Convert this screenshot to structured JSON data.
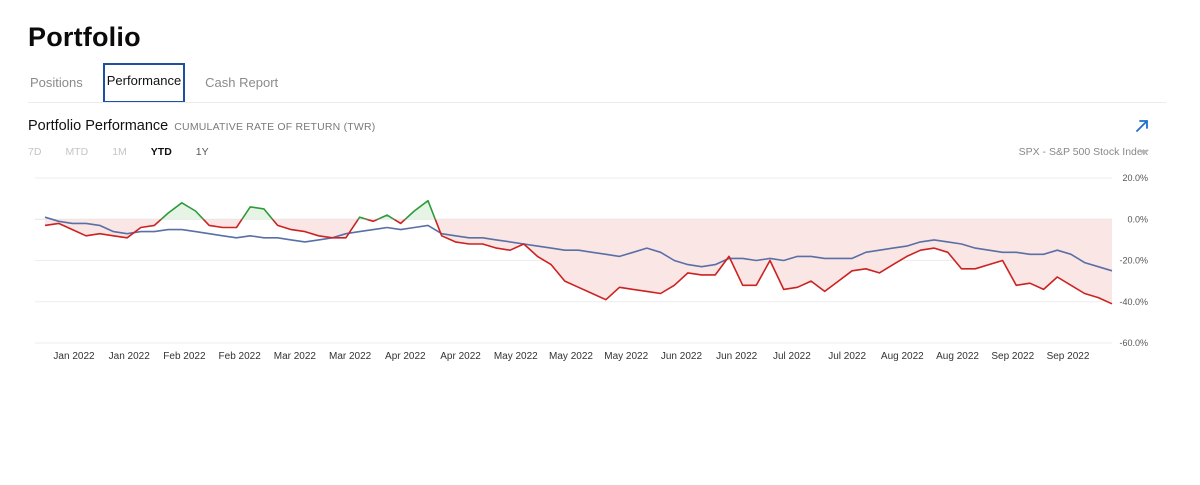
{
  "header": {
    "title": "Portfolio"
  },
  "tabs": [
    {
      "label": "Positions",
      "active": false
    },
    {
      "label": "Performance",
      "active": true
    },
    {
      "label": "Cash Report",
      "active": false
    }
  ],
  "section": {
    "title": "Portfolio Performance",
    "subtitle": "CUMULATIVE RATE OF RETURN (TWR)",
    "expand_icon": "arrow-up-right-icon"
  },
  "ranges": [
    {
      "label": "7D",
      "state": "disabled"
    },
    {
      "label": "MTD",
      "state": "disabled"
    },
    {
      "label": "1M",
      "state": "disabled"
    },
    {
      "label": "YTD",
      "state": "active"
    },
    {
      "label": "1Y",
      "state": "available"
    }
  ],
  "benchmark": {
    "label": "SPX - S&P 500 Stock Index",
    "icon": "caret-down-icon"
  },
  "colors": {
    "portfolio_gain": "#2e9a3e",
    "portfolio_loss": "#cc2222",
    "loss_fill": "#f9e6e5",
    "gain_fill": "#e6f4e6",
    "benchmark_line": "#5a6fa6",
    "tab_active_border": "#1f4fa0",
    "accent_icon": "#1f6fd1"
  },
  "chart_data": {
    "type": "line",
    "title": "Portfolio Performance",
    "subtitle": "CUMULATIVE RATE OF RETURN (TWR)",
    "x_tick_labels": [
      "Jan 2022",
      "Jan 2022",
      "Feb 2022",
      "Feb 2022",
      "Mar 2022",
      "Mar 2022",
      "Apr 2022",
      "Apr 2022",
      "May 2022",
      "May 2022",
      "May 2022",
      "Jun 2022",
      "Jun 2022",
      "Jul 2022",
      "Jul 2022",
      "Aug 2022",
      "Aug 2022",
      "Sep 2022",
      "Sep 2022"
    ],
    "y_ticks": [
      20,
      0,
      -20,
      -40,
      -60
    ],
    "y_tick_labels": [
      "20.0%",
      "0.0%",
      "-20.0%",
      "-40.0%",
      "-60.0%"
    ],
    "ylim": [
      -60,
      20
    ],
    "xlim": [
      0,
      39
    ],
    "series": [
      {
        "name": "Portfolio",
        "x": [
          0,
          0.5,
          1,
          1.5,
          2,
          2.5,
          3,
          3.5,
          4,
          4.5,
          5,
          5.5,
          6,
          6.5,
          7,
          7.5,
          8,
          8.5,
          9,
          9.5,
          10,
          10.5,
          11,
          11.5,
          12,
          12.5,
          13,
          13.5,
          14,
          14.5,
          15,
          15.5,
          16,
          16.5,
          17,
          17.5,
          18,
          18.5,
          19,
          19.5,
          20,
          20.5,
          21,
          21.5,
          22,
          22.5,
          23,
          23.5,
          24,
          24.5,
          25,
          25.5,
          26,
          26.5,
          27,
          27.5,
          28,
          28.5,
          29,
          29.5,
          30,
          30.5,
          31,
          31.5,
          32,
          32.5,
          33,
          33.5,
          34,
          34.5,
          35,
          35.5,
          36,
          36.5,
          37,
          37.5,
          38,
          38.5,
          39
        ],
        "values": [
          -3,
          -2,
          -5,
          -8,
          -7,
          -8,
          -9,
          -4,
          -3,
          3,
          8,
          4,
          -3,
          -4,
          -4,
          6,
          5,
          -3,
          -5,
          -6,
          -8,
          -9,
          -9,
          1,
          -1,
          2,
          -2,
          4,
          9,
          -8,
          -11,
          -12,
          -12,
          -14,
          -15,
          -12,
          -18,
          -22,
          -30,
          -33,
          -36,
          -39,
          -33,
          -34,
          -35,
          -36,
          -32,
          -26,
          -27,
          -27,
          -18,
          -32,
          -32,
          -20,
          -34,
          -33,
          -30,
          -35,
          -30,
          -25,
          -24,
          -26,
          -22,
          -18,
          -15,
          -14,
          -16,
          -24,
          -24,
          -22,
          -20,
          -32,
          -31,
          -34,
          -28,
          -32,
          -36,
          -38,
          -41
        ]
      },
      {
        "name": "SPX - S&P 500 Stock Index",
        "x": [
          0,
          0.5,
          1,
          1.5,
          2,
          2.5,
          3,
          3.5,
          4,
          4.5,
          5,
          5.5,
          6,
          6.5,
          7,
          7.5,
          8,
          8.5,
          9,
          9.5,
          10,
          10.5,
          11,
          11.5,
          12,
          12.5,
          13,
          13.5,
          14,
          14.5,
          15,
          15.5,
          16,
          16.5,
          17,
          17.5,
          18,
          18.5,
          19,
          19.5,
          20,
          20.5,
          21,
          21.5,
          22,
          22.5,
          23,
          23.5,
          24,
          24.5,
          25,
          25.5,
          26,
          26.5,
          27,
          27.5,
          28,
          28.5,
          29,
          29.5,
          30,
          30.5,
          31,
          31.5,
          32,
          32.5,
          33,
          33.5,
          34,
          34.5,
          35,
          35.5,
          36,
          36.5,
          37,
          37.5,
          38,
          38.5,
          39
        ],
        "values": [
          1,
          -1,
          -2,
          -2,
          -3,
          -6,
          -7,
          -6,
          -6,
          -5,
          -5,
          -6,
          -7,
          -8,
          -9,
          -8,
          -9,
          -9,
          -10,
          -11,
          -10,
          -9,
          -7,
          -6,
          -5,
          -4,
          -5,
          -4,
          -3,
          -7,
          -8,
          -9,
          -9,
          -10,
          -11,
          -12,
          -13,
          -14,
          -15,
          -15,
          -16,
          -17,
          -18,
          -16,
          -14,
          -16,
          -20,
          -22,
          -23,
          -22,
          -19,
          -19,
          -20,
          -19,
          -20,
          -18,
          -18,
          -19,
          -19,
          -19,
          -16,
          -15,
          -14,
          -13,
          -11,
          -10,
          -11,
          -12,
          -14,
          -15,
          -16,
          -16,
          -17,
          -17,
          -15,
          -17,
          -21,
          -23,
          -25
        ]
      }
    ]
  }
}
